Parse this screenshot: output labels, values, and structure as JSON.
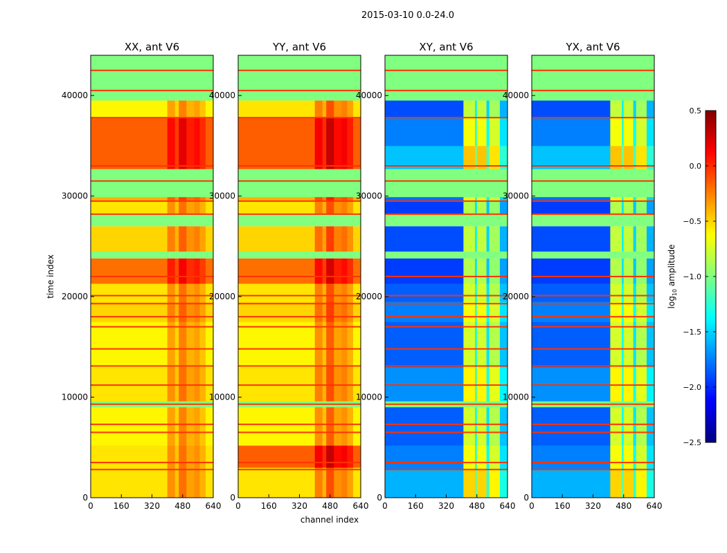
{
  "chart_data": {
    "type": "heatmap",
    "suptitle": "2015-03-10 0.0-24.0",
    "xlabel": "channel index",
    "ylabel": "time index",
    "xlim": [
      0,
      640
    ],
    "ylim": [
      0,
      44000
    ],
    "xticks": [
      "0",
      "160",
      "320",
      "480",
      "640"
    ],
    "xtick_values": [
      0,
      160,
      320,
      480,
      640
    ],
    "yticks": [
      "0",
      "10000",
      "20000",
      "30000",
      "40000"
    ],
    "ytick_values": [
      0,
      10000,
      20000,
      30000,
      40000
    ],
    "colorbar": {
      "label_prefix": "log",
      "label_sub": "10",
      "label_suffix": " amplitude",
      "range": [
        -2.5,
        0.5
      ],
      "ticks": [
        "0.5",
        "0.0",
        "−0.5",
        "−1.0",
        "−1.5",
        "−2.0",
        "−2.5"
      ],
      "tick_values": [
        0.5,
        0.0,
        -0.5,
        -1.0,
        -1.5,
        -2.0,
        -2.5
      ],
      "colormap": "jet"
    },
    "flag_value": -1.0,
    "panels": [
      {
        "title": "XX, ant V6",
        "bands": [
          [
            0,
            5200,
            -0.55
          ],
          [
            5200,
            9000,
            -0.6
          ],
          [
            9000,
            9600,
            null
          ],
          [
            9600,
            13000,
            -0.55
          ],
          [
            13000,
            17500,
            -0.6
          ],
          [
            17500,
            19500,
            -0.5
          ],
          [
            19500,
            21300,
            -0.55
          ],
          [
            21300,
            23800,
            -0.2
          ],
          [
            23800,
            24500,
            null
          ],
          [
            24500,
            27000,
            -0.5
          ],
          [
            27000,
            28200,
            null
          ],
          [
            28200,
            29600,
            -0.55
          ],
          [
            29600,
            29900,
            -0.4
          ],
          [
            29900,
            32700,
            null
          ],
          [
            32700,
            37800,
            -0.15
          ],
          [
            37800,
            39500,
            -0.6
          ],
          [
            39500,
            44000,
            null
          ]
        ],
        "columns": [
          [
            0,
            400,
            0
          ],
          [
            400,
            440,
            0.25
          ],
          [
            440,
            460,
            0.1
          ],
          [
            460,
            500,
            0.35
          ],
          [
            500,
            540,
            0.2
          ],
          [
            540,
            570,
            0.25
          ],
          [
            570,
            600,
            0.15
          ],
          [
            600,
            640,
            0
          ]
        ],
        "lines": [
          2800,
          3500,
          6500,
          7300,
          9300,
          11200,
          13100,
          14800,
          17000,
          18000,
          19300,
          20100,
          22000,
          28200,
          29500,
          31500,
          33000,
          37800,
          40500,
          42500
        ]
      },
      {
        "title": "YY, ant V6",
        "bands": [
          [
            0,
            3000,
            -0.55
          ],
          [
            3000,
            5200,
            -0.15
          ],
          [
            5200,
            9000,
            -0.6
          ],
          [
            9000,
            9600,
            null
          ],
          [
            9600,
            13000,
            -0.55
          ],
          [
            13000,
            17500,
            -0.6
          ],
          [
            17500,
            19500,
            -0.5
          ],
          [
            19500,
            21300,
            -0.55
          ],
          [
            21300,
            23800,
            -0.2
          ],
          [
            23800,
            24500,
            null
          ],
          [
            24500,
            27000,
            -0.5
          ],
          [
            27000,
            28200,
            null
          ],
          [
            28200,
            29600,
            -0.55
          ],
          [
            29600,
            29900,
            -0.4
          ],
          [
            29900,
            32700,
            null
          ],
          [
            32700,
            37800,
            -0.15
          ],
          [
            37800,
            39500,
            -0.55
          ],
          [
            39500,
            44000,
            null
          ]
        ],
        "columns": [
          [
            0,
            400,
            0
          ],
          [
            400,
            440,
            0.3
          ],
          [
            440,
            460,
            0.15
          ],
          [
            460,
            500,
            0.45
          ],
          [
            500,
            540,
            0.25
          ],
          [
            540,
            570,
            0.3
          ],
          [
            570,
            600,
            0.2
          ],
          [
            600,
            640,
            0
          ]
        ],
        "lines": [
          2800,
          3500,
          6500,
          7300,
          9300,
          11200,
          13100,
          14800,
          17000,
          18000,
          19300,
          20100,
          22000,
          28200,
          29500,
          31500,
          33000,
          37800,
          40500,
          42500
        ]
      },
      {
        "title": "XY, ant V6",
        "bands": [
          [
            0,
            2800,
            -1.6
          ],
          [
            2800,
            5200,
            -1.75
          ],
          [
            5200,
            9000,
            -1.85
          ],
          [
            9000,
            9600,
            null
          ],
          [
            9600,
            13000,
            -1.7
          ],
          [
            13000,
            17500,
            -1.85
          ],
          [
            17500,
            19500,
            -1.75
          ],
          [
            19500,
            21300,
            -1.85
          ],
          [
            21300,
            23800,
            -1.95
          ],
          [
            23800,
            24500,
            null
          ],
          [
            24500,
            27000,
            -1.9
          ],
          [
            27000,
            28200,
            null
          ],
          [
            28200,
            29600,
            -1.95
          ],
          [
            29600,
            29900,
            -1.8
          ],
          [
            29900,
            32700,
            null
          ],
          [
            32700,
            35000,
            -1.55
          ],
          [
            35000,
            37800,
            -1.75
          ],
          [
            37800,
            39500,
            -1.9
          ],
          [
            39500,
            44000,
            null
          ]
        ],
        "columns": [
          [
            0,
            410,
            0
          ],
          [
            410,
            470,
            1.1
          ],
          [
            470,
            480,
            0.5
          ],
          [
            480,
            530,
            1.1
          ],
          [
            530,
            545,
            0.4
          ],
          [
            545,
            600,
            1.0
          ],
          [
            600,
            640,
            0.3
          ]
        ],
        "lines": [
          2800,
          3500,
          6500,
          7300,
          9300,
          11200,
          13100,
          14800,
          17000,
          18000,
          19300,
          20100,
          22000,
          28200,
          29500,
          31500,
          33000,
          37800,
          40500,
          42500
        ]
      },
      {
        "title": "YX, ant V6",
        "bands": [
          [
            0,
            2800,
            -1.6
          ],
          [
            2800,
            5200,
            -1.75
          ],
          [
            5200,
            9000,
            -1.85
          ],
          [
            9000,
            9600,
            null
          ],
          [
            9600,
            13000,
            -1.7
          ],
          [
            13000,
            17500,
            -1.85
          ],
          [
            17500,
            19500,
            -1.75
          ],
          [
            19500,
            21300,
            -1.85
          ],
          [
            21300,
            23800,
            -1.95
          ],
          [
            23800,
            24500,
            null
          ],
          [
            24500,
            27000,
            -1.9
          ],
          [
            27000,
            28200,
            null
          ],
          [
            28200,
            29600,
            -1.95
          ],
          [
            29600,
            29900,
            -1.8
          ],
          [
            29900,
            32700,
            null
          ],
          [
            32700,
            35000,
            -1.55
          ],
          [
            35000,
            37800,
            -1.75
          ],
          [
            37800,
            39500,
            -1.9
          ],
          [
            39500,
            44000,
            null
          ]
        ],
        "columns": [
          [
            0,
            410,
            0
          ],
          [
            410,
            470,
            1.1
          ],
          [
            470,
            480,
            0.5
          ],
          [
            480,
            530,
            1.1
          ],
          [
            530,
            545,
            0.4
          ],
          [
            545,
            600,
            1.0
          ],
          [
            600,
            640,
            0.3
          ]
        ],
        "lines": [
          2800,
          3500,
          6500,
          7300,
          9300,
          11200,
          13100,
          14800,
          17000,
          18000,
          19300,
          20100,
          22000,
          28200,
          29500,
          31500,
          33000,
          37800,
          40500,
          42500
        ]
      }
    ]
  }
}
